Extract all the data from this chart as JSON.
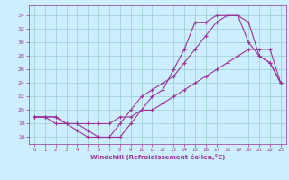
{
  "xlabel": "Windchill (Refroidissement éolien,°C)",
  "bg_color": "#cceeff",
  "line_color": "#993399",
  "grid_color": "#99cccc",
  "xmin": -0.5,
  "xmax": 23.5,
  "ymin": 15.0,
  "ymax": 35.5,
  "yticks": [
    16,
    18,
    20,
    22,
    24,
    26,
    28,
    30,
    32,
    34
  ],
  "xticks": [
    0,
    1,
    2,
    3,
    4,
    5,
    6,
    7,
    8,
    9,
    10,
    11,
    12,
    13,
    14,
    15,
    16,
    17,
    18,
    19,
    20,
    21,
    22,
    23
  ],
  "line1_x": [
    0,
    1,
    2,
    3,
    4,
    5,
    6,
    7,
    8,
    9,
    10,
    11,
    12,
    13,
    14,
    15,
    16,
    17,
    18,
    19,
    20,
    21,
    22,
    23
  ],
  "line1_y": [
    19,
    19,
    19,
    18,
    18,
    17,
    16,
    16,
    16,
    18,
    20,
    22,
    23,
    26,
    29,
    33,
    33,
    34,
    34,
    34,
    33,
    28,
    27,
    24
  ],
  "line2_x": [
    0,
    1,
    2,
    3,
    4,
    5,
    6,
    7,
    8,
    9,
    10,
    11,
    12,
    13,
    14,
    15,
    16,
    17,
    18,
    19,
    20,
    21,
    22,
    23
  ],
  "line2_y": [
    19,
    19,
    18,
    18,
    17,
    16,
    16,
    16,
    18,
    20,
    22,
    23,
    24,
    25,
    27,
    29,
    31,
    33,
    34,
    34,
    30,
    28,
    27,
    24
  ],
  "line3_x": [
    0,
    1,
    2,
    3,
    4,
    5,
    6,
    7,
    8,
    9,
    10,
    11,
    12,
    13,
    14,
    15,
    16,
    17,
    18,
    19,
    20,
    21,
    22,
    23
  ],
  "line3_y": [
    19,
    19,
    19,
    18,
    18,
    18,
    18,
    18,
    19,
    19,
    20,
    20,
    21,
    22,
    23,
    24,
    25,
    26,
    27,
    28,
    29,
    29,
    29,
    24
  ]
}
